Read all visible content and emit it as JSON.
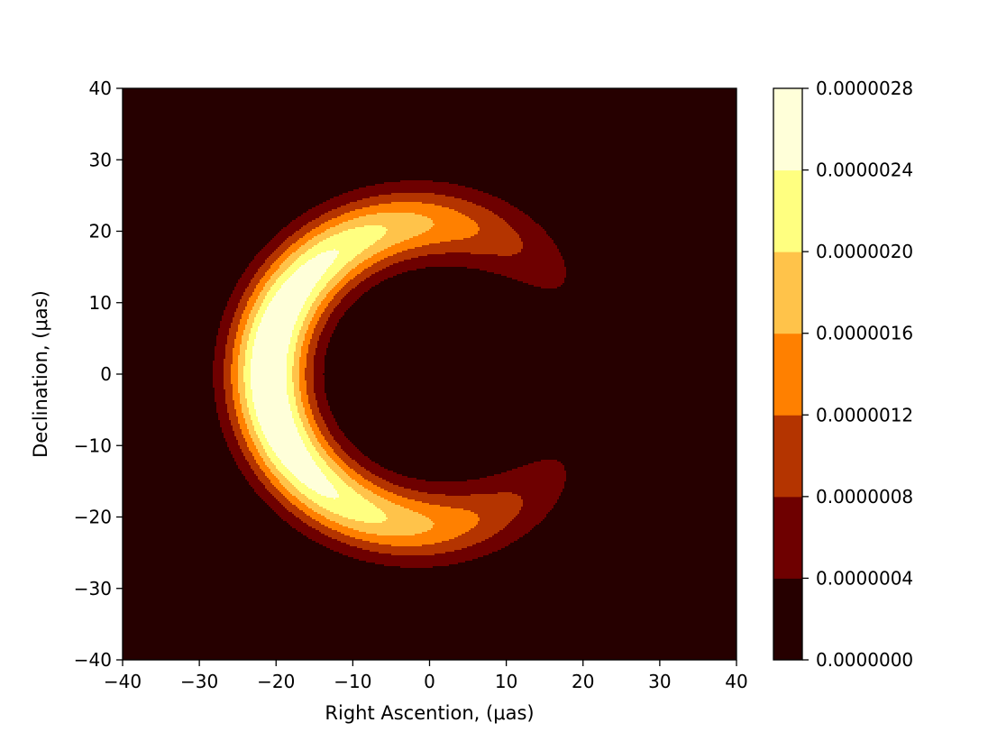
{
  "chart_data": {
    "type": "contour",
    "xlabel": "Right Ascention, (μas)",
    "ylabel": "Declination, (μas)",
    "xlim": [
      -40,
      40
    ],
    "ylim": [
      -40,
      40
    ],
    "x_ticks": [
      "−40",
      "−30",
      "−20",
      "−10",
      "0",
      "10",
      "20",
      "30",
      "40"
    ],
    "y_ticks": [
      "−40",
      "−30",
      "−20",
      "−10",
      "0",
      "10",
      "20",
      "30",
      "40"
    ],
    "grid": false,
    "colormap": "afmhot",
    "colorbar": {
      "levels": [
        0.0,
        4e-07,
        8e-07,
        1.2e-06,
        1.6e-06,
        2e-06,
        2.4e-06,
        2.8e-06
      ],
      "tick_labels": [
        "0.0000000",
        "0.0000004",
        "0.0000008",
        "0.0000012",
        "0.0000016",
        "0.0000020",
        "0.0000024",
        "0.0000028"
      ],
      "colors": [
        "#260000",
        "#6e0000",
        "#b43400",
        "#ff8000",
        "#ffc34a",
        "#ffff80",
        "#ffffd9"
      ]
    },
    "crescent": {
      "outer_edge_x": -27,
      "inner_edge_x": -14,
      "peak_x": -18,
      "tip_x": 15,
      "tip_y": 15,
      "outer_radius": 26,
      "inner_radius": 15
    }
  }
}
